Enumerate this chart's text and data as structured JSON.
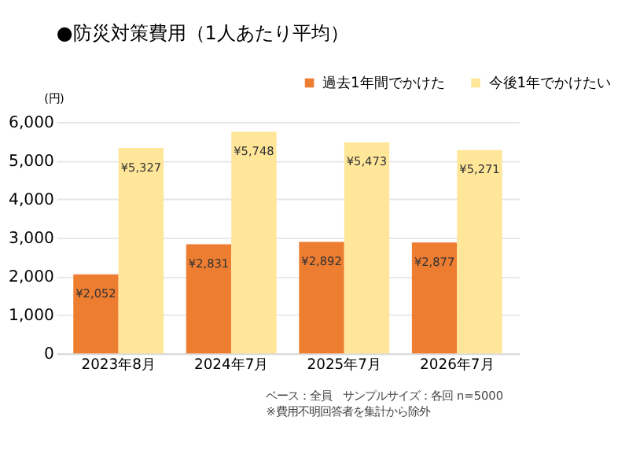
{
  "chart_data": {
    "type": "bar",
    "title": "●防災対策費用（1人あたり平均）",
    "ylabel": "(円)",
    "categories": [
      "2023年8月",
      "2024年7月",
      "2025年7月",
      "2026年7月"
    ],
    "series": [
      {
        "name": "過去1年間でかけた",
        "color": "#ed7d31",
        "values": [
          2052,
          2831,
          2892,
          2877
        ],
        "value_labels": [
          "¥2,052",
          "¥2,831",
          "¥2,892",
          "¥2,877"
        ]
      },
      {
        "name": "今後1年でかけたい",
        "color": "#ffe699",
        "values": [
          5327,
          5748,
          5473,
          5271
        ],
        "value_labels": [
          "¥5,327",
          "¥5,748",
          "¥5,473",
          "¥5,271"
        ]
      }
    ],
    "ylim": [
      0,
      6000
    ],
    "yticks": [
      0,
      {
        "value": 1000,
        "label": "1,000"
      },
      {
        "value": 2000,
        "label": "2,000"
      },
      {
        "value": 3000,
        "label": "3,000"
      },
      {
        "value": 4000,
        "label": "4,000"
      },
      {
        "value": 5000,
        "label": "5,000"
      },
      {
        "value": 6000,
        "label": "6,000"
      }
    ],
    "grid": "y",
    "legend": "top right",
    "annotations": [
      "ベース：全員　サンプルサイズ：各回 n=5000",
      "※費用不明回答者を集計から除外"
    ]
  }
}
